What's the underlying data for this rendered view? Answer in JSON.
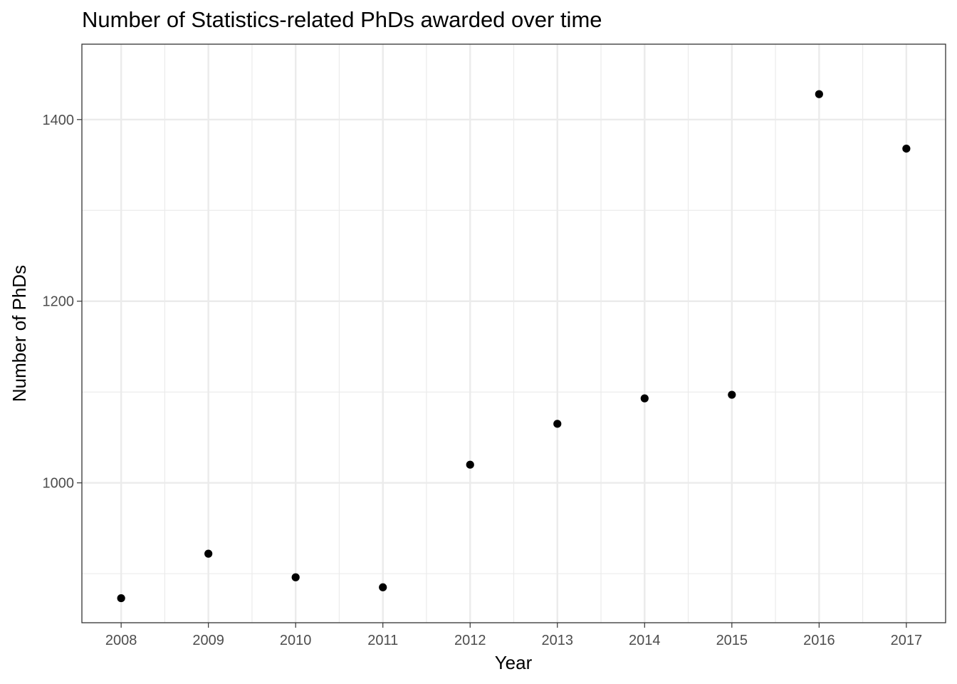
{
  "chart_data": {
    "type": "scatter",
    "title": "Number of Statistics-related PhDs awarded over time",
    "xlabel": "Year",
    "ylabel": "Number of PhDs",
    "x": [
      2008,
      2009,
      2010,
      2011,
      2012,
      2013,
      2014,
      2015,
      2016,
      2017
    ],
    "y": [
      873,
      922,
      896,
      885,
      1020,
      1065,
      1093,
      1097,
      1428,
      1368
    ],
    "x_ticks": [
      "2008",
      "2009",
      "2010",
      "2011",
      "2012",
      "2013",
      "2014",
      "2015",
      "2016",
      "2017"
    ],
    "y_ticks": [
      1000,
      1200,
      1400
    ],
    "y_tick_labels": [
      "1000",
      "1200",
      "1400"
    ],
    "xlim": [
      2007.55,
      2017.45
    ],
    "ylim": [
      846,
      1483
    ],
    "grid": true,
    "legend": "none",
    "point_color": "#000000"
  }
}
